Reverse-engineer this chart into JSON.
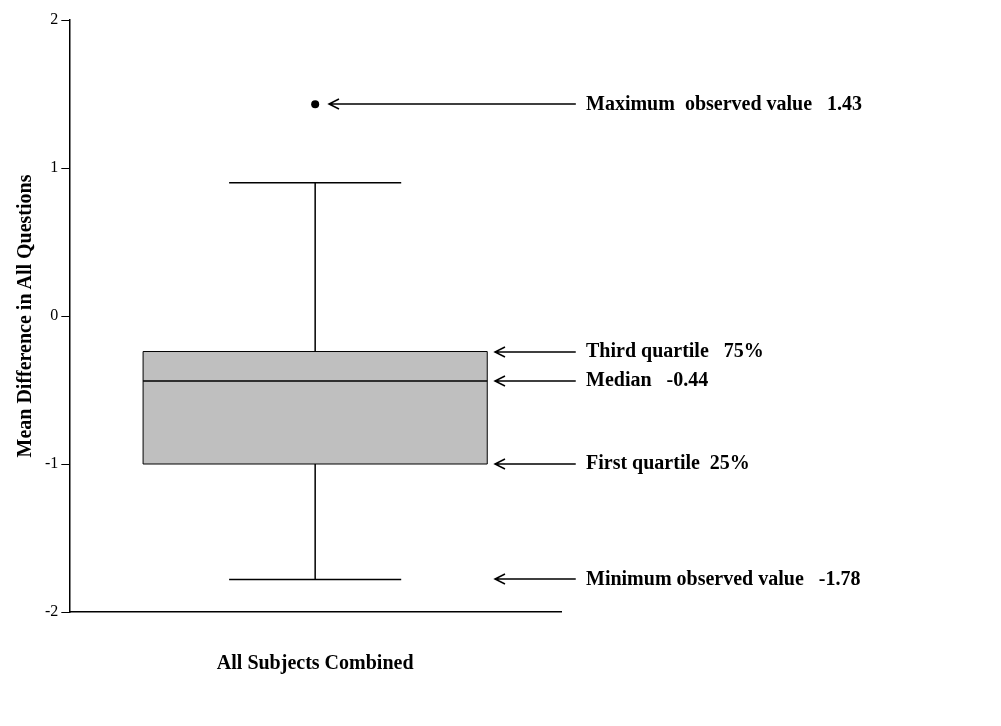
{
  "chart_data": {
    "type": "box",
    "ylabel": "Mean Difference in All Questions",
    "categories": [
      "All Subjects Combined"
    ],
    "color": "#bfbfbf",
    "boxes": [
      {
        "low": -1.78,
        "q1": -1.0,
        "median": -0.44,
        "q3": -0.24,
        "high": 0.9,
        "outliers": [
          1.43
        ]
      }
    ],
    "ylim": [
      -2,
      2
    ],
    "yticks": [
      -2,
      -1,
      0,
      1,
      2
    ],
    "grid": false,
    "legend": false,
    "annotations": [
      "Maximum  observed value   1.43",
      "Third quartile   75%",
      "Median   -0.44",
      "First quartile  25%",
      "Minimum observed value   -1.78"
    ]
  }
}
